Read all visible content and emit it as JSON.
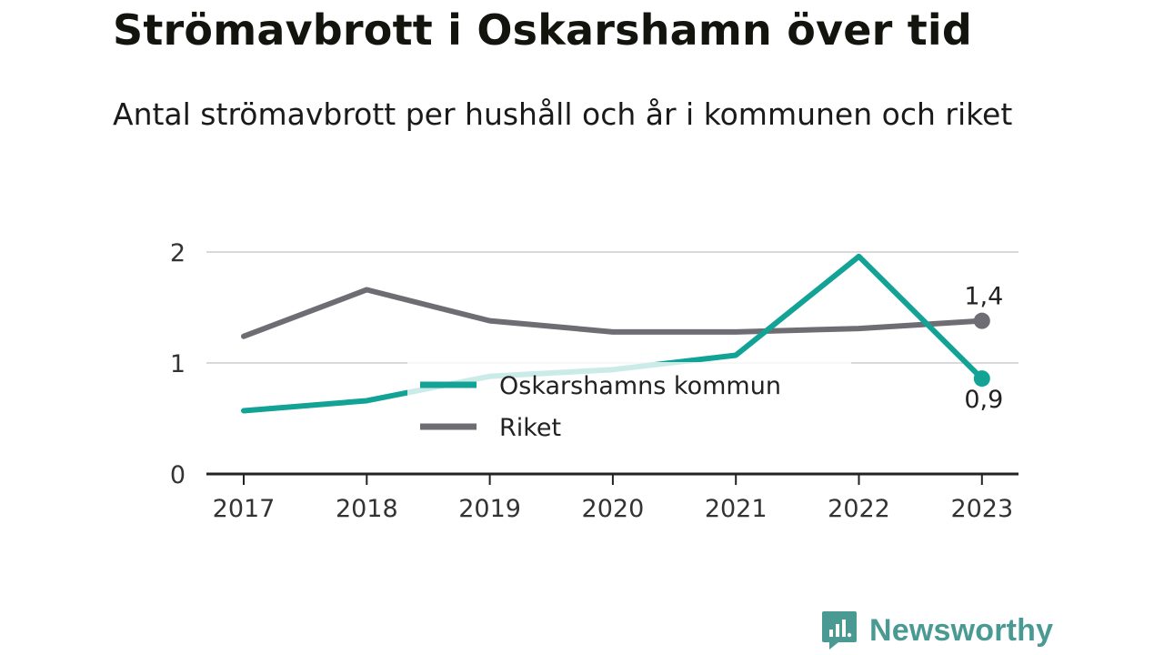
{
  "header": {
    "title": "Strömavbrott i Oskarshamn över tid",
    "subtitle": "Antal strömavbrott per hushåll och år i kommunen och riket"
  },
  "brand": {
    "name": "Newsworthy",
    "icon": "newsworthy-logo-icon",
    "color": "#4a9a93"
  },
  "chart_data": {
    "type": "line",
    "title": "Strömavbrott i Oskarshamn över tid",
    "subtitle": "Antal strömavbrott per hushåll och år i kommunen och riket",
    "xlabel": "",
    "ylabel": "",
    "x": [
      "2017",
      "2018",
      "2019",
      "2020",
      "2021",
      "2022",
      "2023"
    ],
    "ylim": [
      0,
      2
    ],
    "yticks": [
      "0",
      "1",
      "2"
    ],
    "grid": true,
    "legend": "center",
    "series": [
      {
        "name": "Oskarshamns kommun",
        "color": "#13a396",
        "values": [
          0.57,
          0.66,
          0.88,
          0.94,
          1.07,
          1.96,
          0.86
        ],
        "end_label": "0,9"
      },
      {
        "name": "Riket",
        "color": "#6e6d73",
        "values": [
          1.24,
          1.66,
          1.38,
          1.28,
          1.28,
          1.31,
          1.38
        ],
        "end_label": "1,4"
      }
    ]
  }
}
